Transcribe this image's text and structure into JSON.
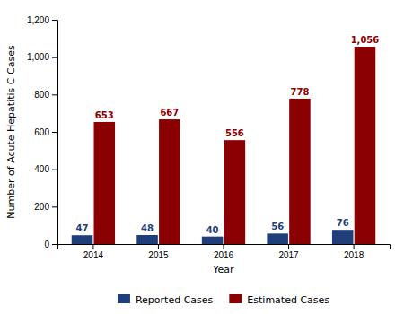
{
  "chart_data": {
    "type": "bar",
    "categories": [
      "2014",
      "2015",
      "2016",
      "2017",
      "2018"
    ],
    "series": [
      {
        "name": "Reported Cases",
        "color": "#1f3f7a",
        "values": [
          47,
          48,
          40,
          56,
          76
        ]
      },
      {
        "name": "Estimated Cases",
        "color": "#8b0000",
        "values": [
          653,
          667,
          556,
          778,
          1056
        ],
        "value_labels": [
          "653",
          "667",
          "556",
          "778",
          "1,056"
        ]
      }
    ],
    "xlabel": "Year",
    "ylabel": "Number of Acute Hepatitis C Cases",
    "ylim": [
      0,
      1200
    ],
    "yticks": [
      0,
      200,
      400,
      600,
      800,
      {
        "value": 1000,
        "label": "1,000"
      },
      {
        "value": 1200,
        "label": "1,200"
      }
    ],
    "grid": false,
    "data_labels": true,
    "legend": "bottom"
  }
}
